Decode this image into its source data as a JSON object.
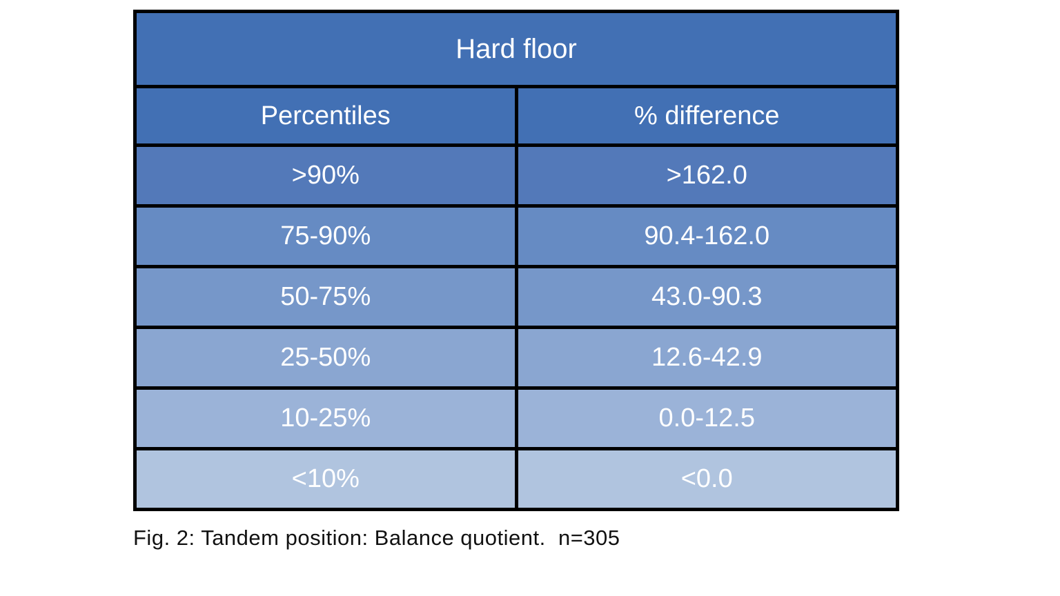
{
  "table": {
    "title": "Hard floor",
    "columns": [
      "Percentiles",
      "% difference"
    ],
    "rows": [
      {
        "percentile": ">90%",
        "difference": ">162.0",
        "color": "#5379B9"
      },
      {
        "percentile": "75-90%",
        "difference": "90.4-162.0",
        "color": "#668BC3"
      },
      {
        "percentile": "50-75%",
        "difference": "43.0-90.3",
        "color": "#7697C9"
      },
      {
        "percentile": "25-50%",
        "difference": "12.6-42.9",
        "color": "#8AA6D1"
      },
      {
        "percentile": "10-25%",
        "difference": "0.0-12.5",
        "color": "#9BB3D8"
      },
      {
        "percentile": "<10%",
        "difference": "<0.0",
        "color": "#B0C4DF"
      }
    ]
  },
  "caption": "Fig. 2: Tandem position: Balance quotient.  n=305",
  "colors": {
    "header_bg": "#4270B4",
    "border": "#000000",
    "cell_text": "#FFFFFF",
    "caption_text": "#111111",
    "page_bg": "#FFFFFF"
  },
  "chart_data": {
    "type": "table",
    "title": "Hard floor",
    "columns": [
      "Percentiles",
      "% difference"
    ],
    "rows": [
      [
        ">90%",
        ">162.0"
      ],
      [
        "75-90%",
        "90.4-162.0"
      ],
      [
        "50-75%",
        "43.0-90.3"
      ],
      [
        "25-50%",
        "12.6-42.9"
      ],
      [
        "10-25%",
        "0.0-12.5"
      ],
      [
        "<10%",
        "<0.0"
      ]
    ],
    "caption": "Fig. 2: Tandem position: Balance quotient.  n=305",
    "layout_hints": {
      "title_row_spans_both_columns": true,
      "row_background_gradient": [
        "#5379B9",
        "#668BC3",
        "#7697C9",
        "#8AA6D1",
        "#9BB3D8",
        "#B0C4DF"
      ],
      "grid": true
    }
  }
}
